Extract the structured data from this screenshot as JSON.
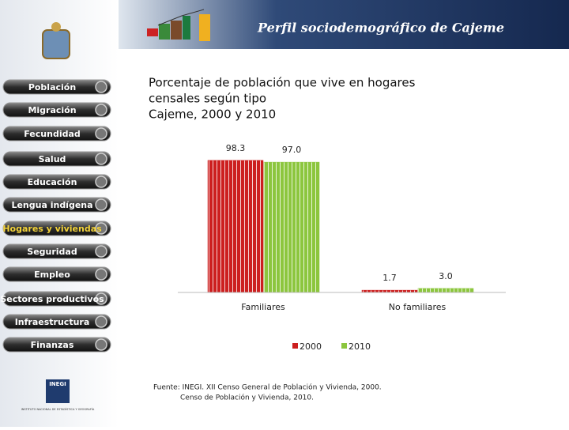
{
  "header": {
    "title": "Perfil sociodemográfico de Cajeme"
  },
  "nav": {
    "items": [
      "Población",
      "Migración",
      "Fecundidad",
      "Salud",
      "Educación",
      "Lengua indígena",
      "Hogares y viviendas",
      "Seguridad",
      "Empleo",
      "Sectores productivos",
      "Infraestructura",
      "Finanzas"
    ],
    "active": "Hogares y viviendas"
  },
  "logo": {
    "name": "INEGI",
    "caption": "INSTITUTO NACIONAL DE ESTADÍSTICA Y GEOGRAFÍA"
  },
  "chart_data": {
    "type": "bar",
    "title": [
      "Porcentaje de población que vive en hogares",
      "censales según tipo",
      "Cajeme, 2000 y 2010"
    ],
    "categories": [
      "Familiares",
      "No familiares"
    ],
    "series": [
      {
        "name": "2000",
        "color": "#cc1f1f",
        "values": [
          98.3,
          1.7
        ],
        "value_labels": [
          "98.3",
          "1.7"
        ]
      },
      {
        "name": "2010",
        "color": "#8cc63e",
        "values": [
          97.0,
          3.0
        ],
        "value_labels": [
          "97.0",
          "3.0"
        ]
      }
    ]
  },
  "source": [
    "Fuente: INEGI. XII Censo General de Población y Vivienda, 2000.",
    "Censo de Población y Vivienda, 2010."
  ]
}
